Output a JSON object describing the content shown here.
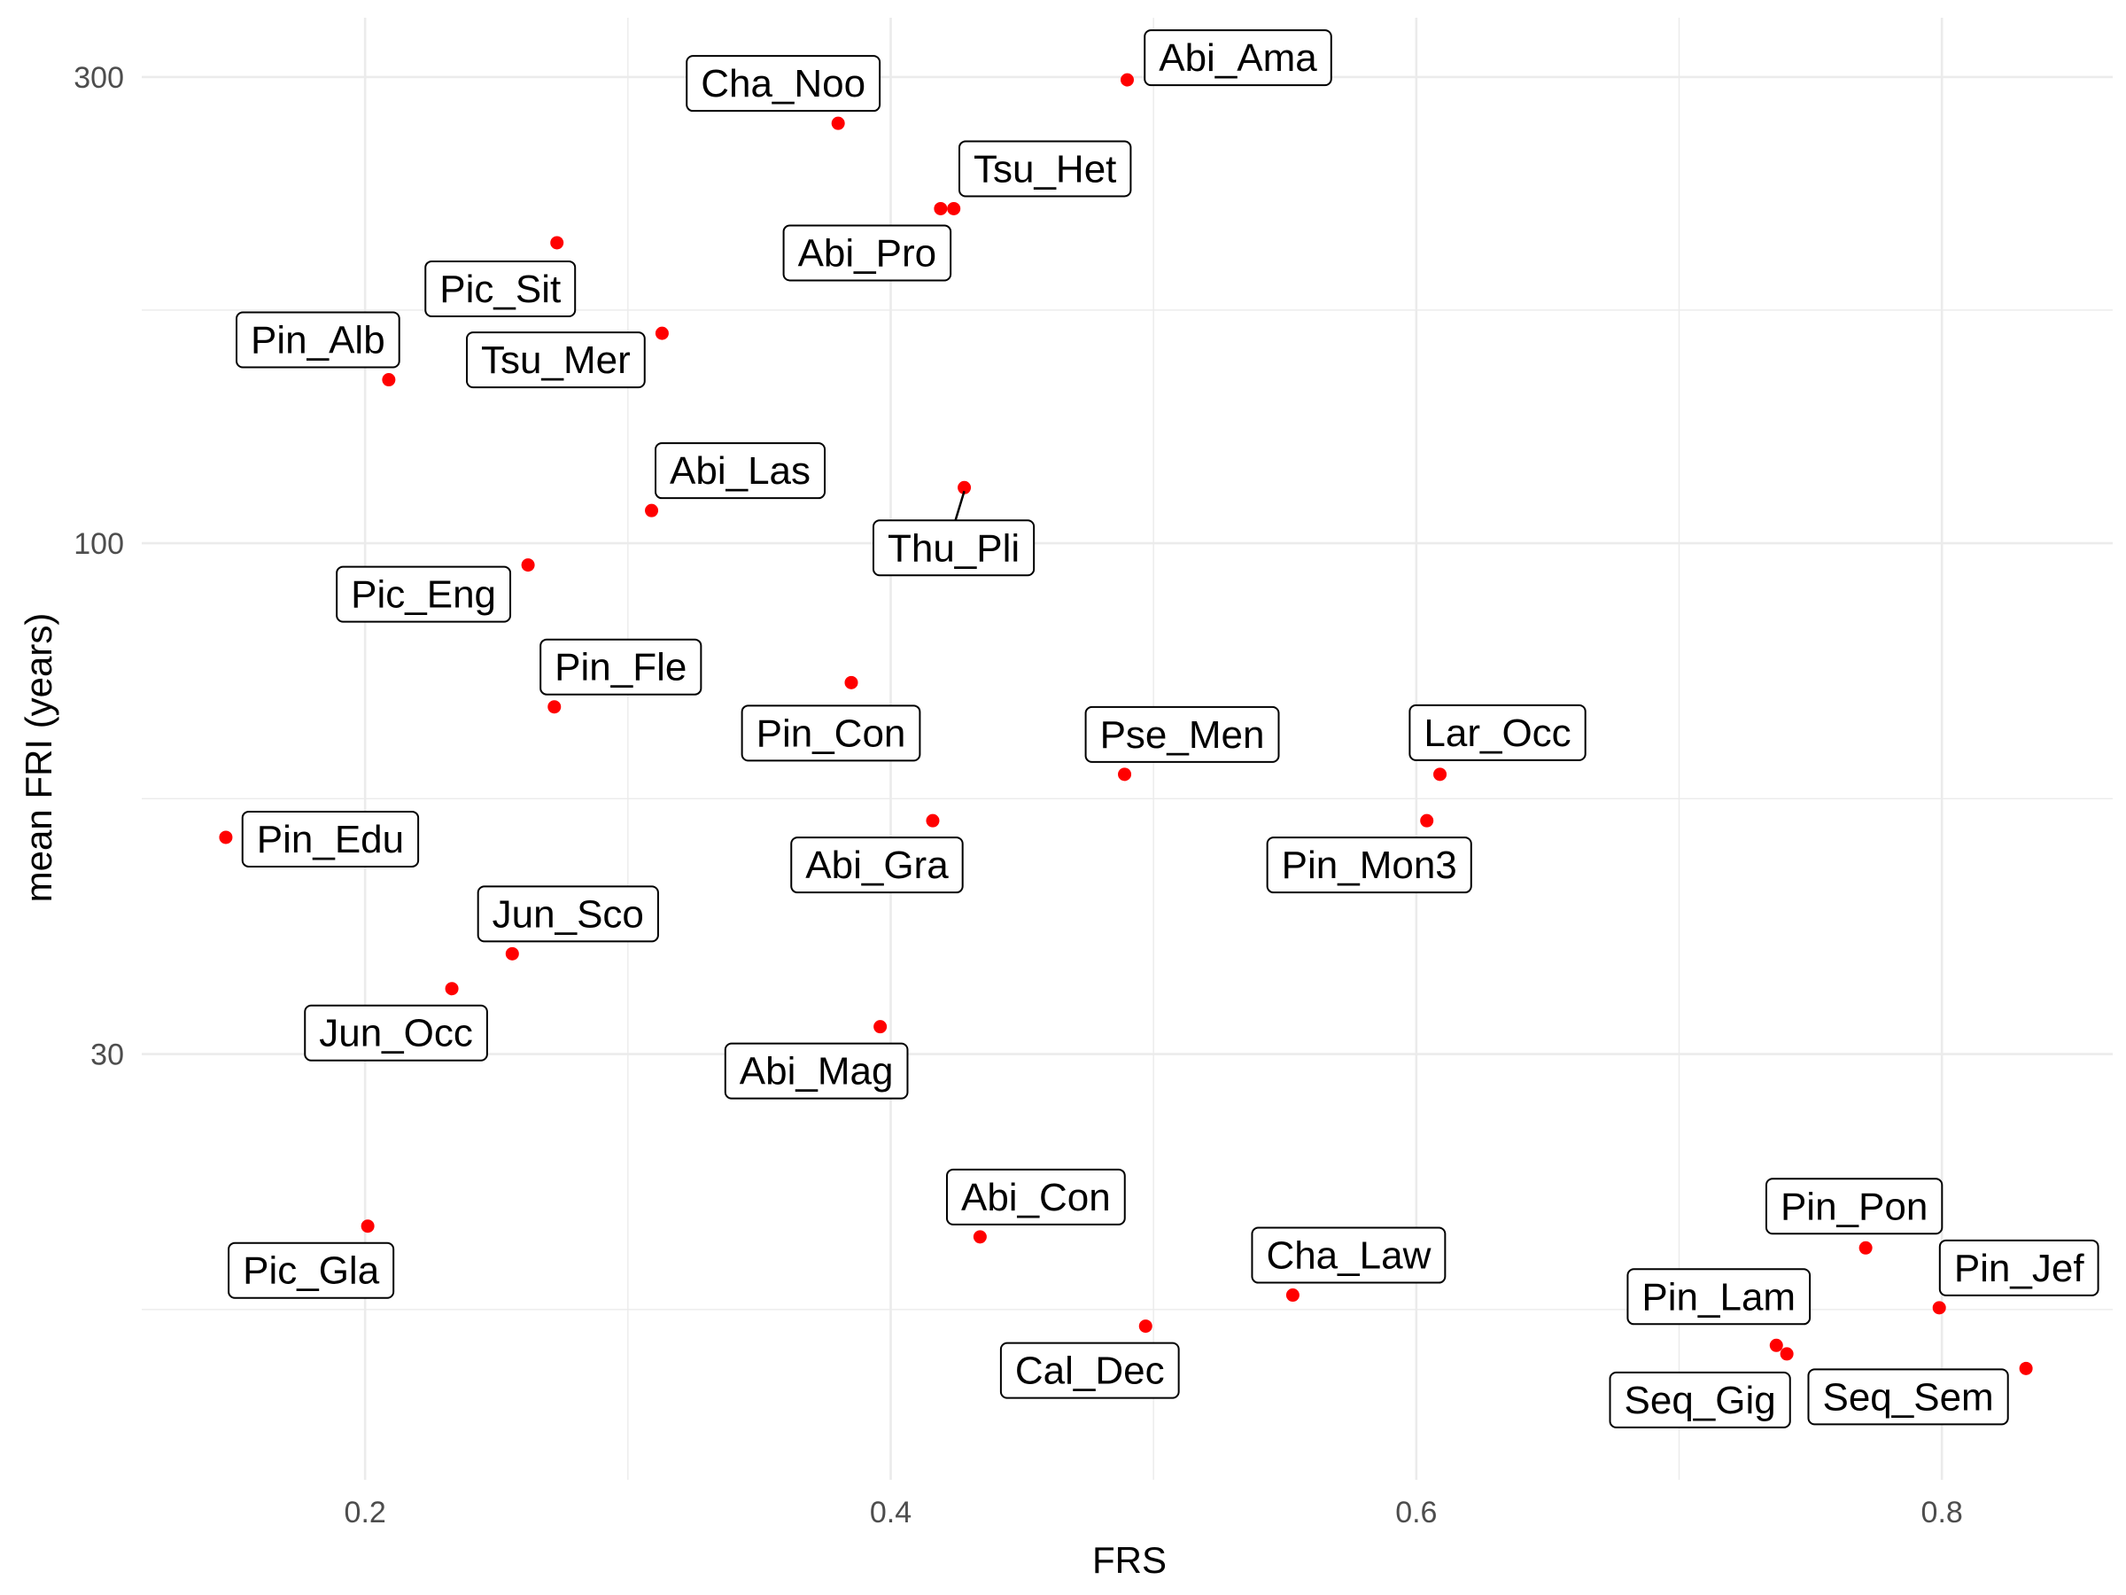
{
  "chart_data": {
    "type": "scatter",
    "xlabel": "FRS",
    "ylabel": "mean FRI (years)",
    "x_scale": "linear",
    "y_scale": "log10",
    "xlim": [
      0.115,
      0.865
    ],
    "ylim": [
      11,
      345
    ],
    "x_ticks": [
      0.2,
      0.4,
      0.6,
      0.8
    ],
    "x_tick_labels": [
      "0.2",
      "0.4",
      "0.6",
      "0.8"
    ],
    "y_ticks": [
      30,
      100,
      300
    ],
    "y_tick_labels": [
      "30",
      "100",
      "300"
    ],
    "grid": true,
    "point_color": "#ff0000",
    "points": [
      {
        "name": "Abi_Ama",
        "x": 0.49,
        "y": 298
      },
      {
        "name": "Cha_Noo",
        "x": 0.38,
        "y": 269
      },
      {
        "name": "Tsu_Het",
        "x": 0.424,
        "y": 220
      },
      {
        "name": "Abi_Pro",
        "x": 0.419,
        "y": 220
      },
      {
        "name": "Pic_Sit",
        "x": 0.273,
        "y": 203
      },
      {
        "name": "Tsu_Mer",
        "x": 0.313,
        "y": 164
      },
      {
        "name": "Pin_Alb",
        "x": 0.209,
        "y": 147
      },
      {
        "name": "Thu_Pli",
        "x": 0.428,
        "y": 114
      },
      {
        "name": "Abi_Las",
        "x": 0.309,
        "y": 108
      },
      {
        "name": "Pic_Eng",
        "x": 0.262,
        "y": 95
      },
      {
        "name": "Pin_Con",
        "x": 0.385,
        "y": 72
      },
      {
        "name": "Pin_Fle",
        "x": 0.272,
        "y": 68
      },
      {
        "name": "Lar_Occ",
        "x": 0.609,
        "y": 58
      },
      {
        "name": "Pse_Men",
        "x": 0.489,
        "y": 58
      },
      {
        "name": "Pin_Mon3",
        "x": 0.604,
        "y": 52
      },
      {
        "name": "Abi_Gra",
        "x": 0.416,
        "y": 52
      },
      {
        "name": "Pin_Edu",
        "x": 0.147,
        "y": 50
      },
      {
        "name": "Jun_Sco",
        "x": 0.256,
        "y": 38
      },
      {
        "name": "Jun_Occ",
        "x": 0.233,
        "y": 35
      },
      {
        "name": "Abi_Mag",
        "x": 0.396,
        "y": 32
      },
      {
        "name": "Pic_Gla",
        "x": 0.201,
        "y": 20
      },
      {
        "name": "Abi_Con",
        "x": 0.434,
        "y": 19.5
      },
      {
        "name": "Pin_Pon",
        "x": 0.771,
        "y": 19
      },
      {
        "name": "Cha_Law",
        "x": 0.553,
        "y": 17
      },
      {
        "name": "Pin_Jef",
        "x": 0.799,
        "y": 16.5
      },
      {
        "name": "Cal_Dec",
        "x": 0.497,
        "y": 15.8
      },
      {
        "name": "Pin_Lam",
        "x": 0.737,
        "y": 15.1
      },
      {
        "name": "Seq_Gig",
        "x": 0.741,
        "y": 14.8
      },
      {
        "name": "Seq_Sem",
        "x": 0.832,
        "y": 14.3
      }
    ]
  }
}
